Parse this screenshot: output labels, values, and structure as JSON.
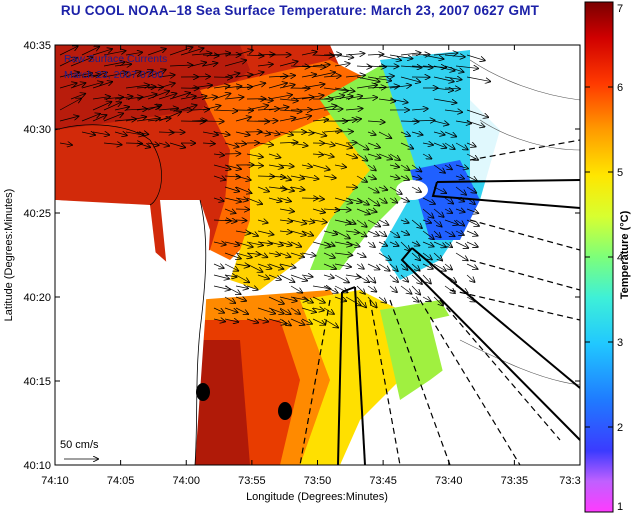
{
  "title": "RU COOL  NOAA–18  Sea Surface Temperature:  March 23, 2007 0627 GMT",
  "overlay_text": {
    "line1": "Raw Surface Currents",
    "line2": "March 23, 2007 0700"
  },
  "scale_label": "50 cm/s",
  "x_axis": {
    "label": "Longitude (Degrees:Minutes)",
    "ticks": [
      "74:10",
      "74:05",
      "74:00",
      "73:55",
      "73:50",
      "73:45",
      "73:40",
      "73:35",
      "73:3"
    ]
  },
  "y_axis": {
    "label": "Latitude (Degrees:Minutes)",
    "ticks": [
      "40:35",
      "40:30",
      "40:25",
      "40:20",
      "40:15",
      "40:10"
    ]
  },
  "colorbar": {
    "label": "Temperature (°C)",
    "ticks": [
      "7",
      "6",
      "5",
      "4",
      "3",
      "2",
      "1"
    ],
    "range": [
      1,
      7
    ]
  },
  "colors": {
    "title": "#1c21a8",
    "land": "#ffffff",
    "vector": "#000000"
  }
}
